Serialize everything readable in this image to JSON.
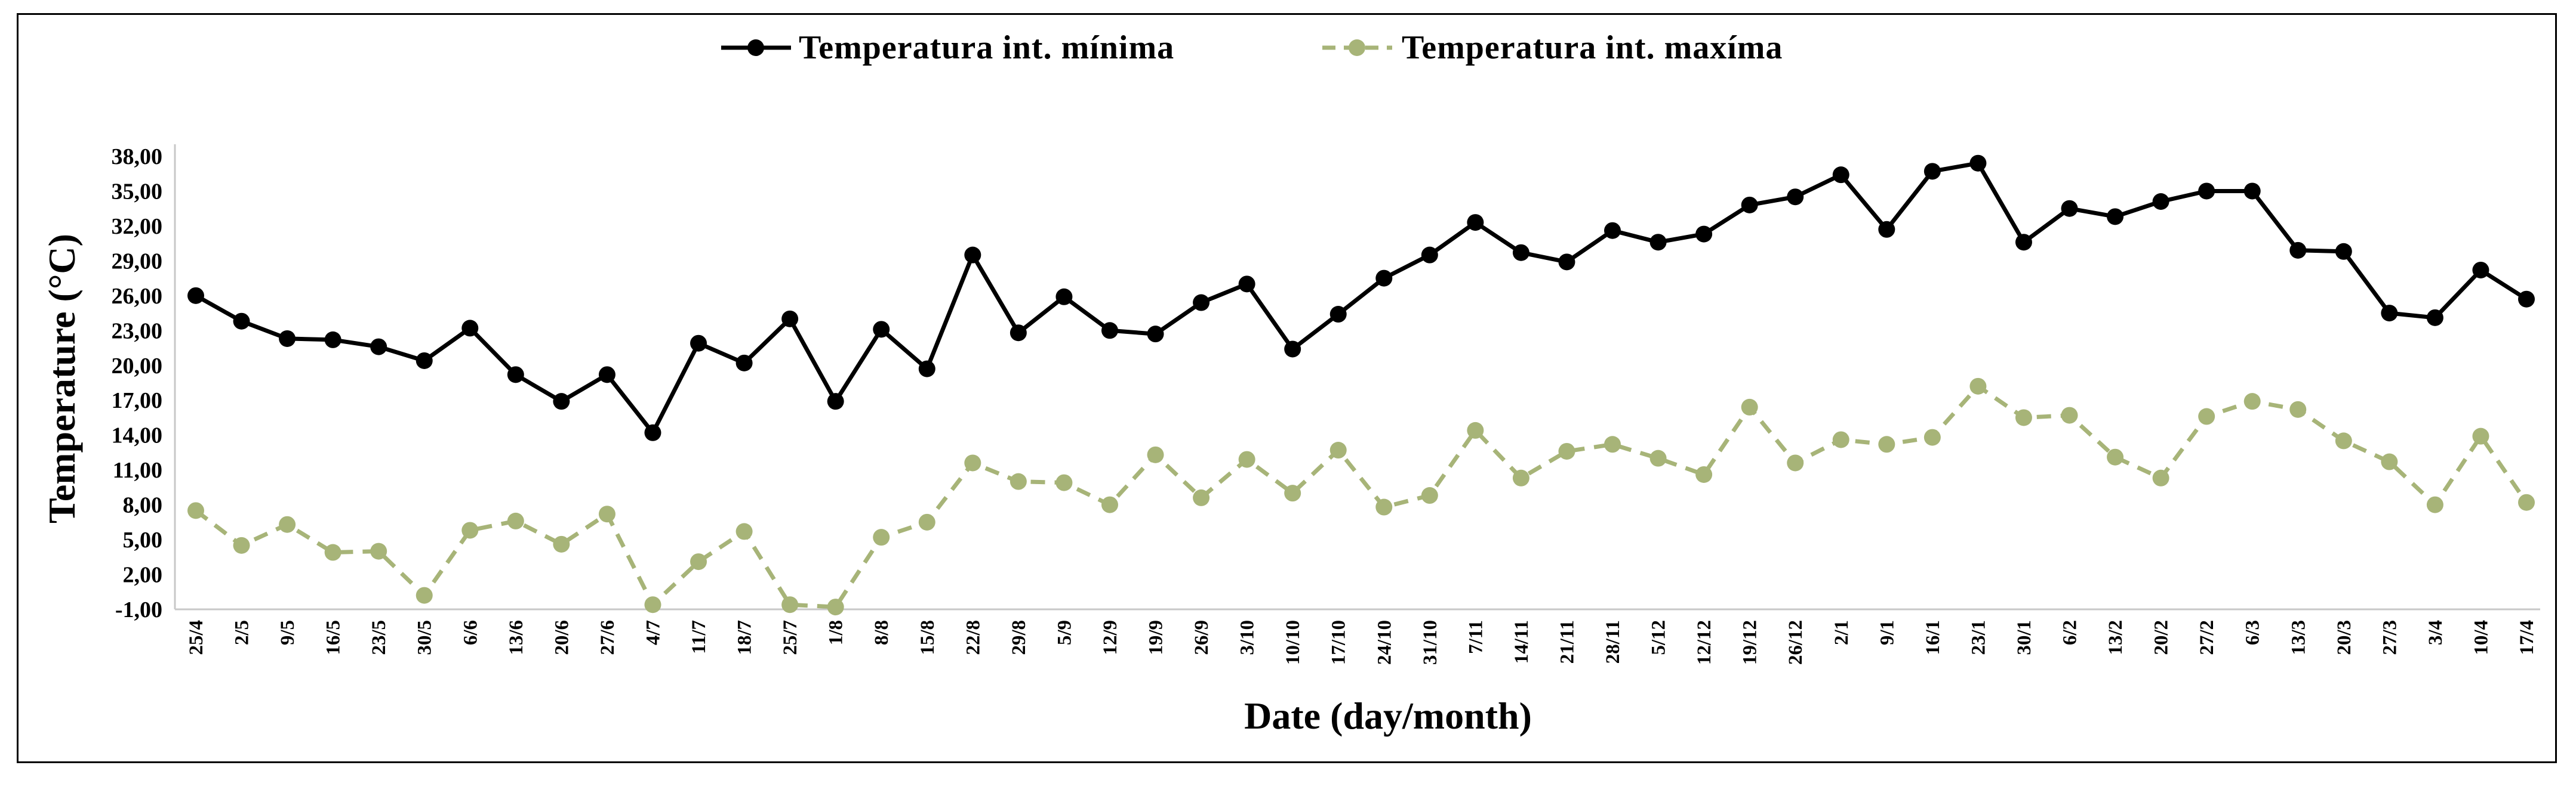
{
  "chart_data": {
    "type": "line",
    "title": "",
    "xlabel": "Date (day/month)",
    "ylabel": "Temperature (°C)",
    "ylim": [
      -1,
      38
    ],
    "yticks": [
      "-1,00",
      "2,00",
      "5,00",
      "8,00",
      "11,00",
      "14,00",
      "17,00",
      "20,00",
      "23,00",
      "26,00",
      "29,00",
      "32,00",
      "35,00",
      "38,00"
    ],
    "ytick_values": [
      -1,
      2,
      5,
      8,
      11,
      14,
      17,
      20,
      23,
      26,
      29,
      32,
      35,
      38
    ],
    "grid": false,
    "legend_position": "top-center",
    "categories": [
      "25/4",
      "2/5",
      "9/5",
      "16/5",
      "23/5",
      "30/5",
      "6/6",
      "13/6",
      "20/6",
      "27/6",
      "4/7",
      "11/7",
      "18/7",
      "25/7",
      "1/8",
      "8/8",
      "15/8",
      "22/8",
      "29/8",
      "5/9",
      "12/9",
      "19/9",
      "26/9",
      "3/10",
      "10/10",
      "17/10",
      "24/10",
      "31/10",
      "7/11",
      "14/11",
      "21/11",
      "28/11",
      "5/12",
      "12/12",
      "19/12",
      "26/12",
      "2/1",
      "9/1",
      "16/1",
      "23/1",
      "30/1",
      "6/2",
      "13/2",
      "20/2",
      "27/2",
      "6/3",
      "13/3",
      "20/3",
      "27/3",
      "3/4",
      "10/4",
      "17/4"
    ],
    "series": [
      {
        "name": "Temperatura int. mínima",
        "color": "#000000",
        "style": "solid",
        "values": [
          26.0,
          23.8,
          22.3,
          22.2,
          21.6,
          20.4,
          23.2,
          19.2,
          16.9,
          19.2,
          14.2,
          21.9,
          20.2,
          24.0,
          16.9,
          23.1,
          19.7,
          29.5,
          22.8,
          25.9,
          23.0,
          22.7,
          25.4,
          27.0,
          21.4,
          24.4,
          27.5,
          29.5,
          32.3,
          29.7,
          28.9,
          31.6,
          30.6,
          31.3,
          33.8,
          34.5,
          36.4,
          31.7,
          36.7,
          37.4,
          30.6,
          33.5,
          32.8,
          34.1,
          35.0,
          35.0,
          29.9,
          29.8,
          24.5,
          24.1,
          28.2,
          25.7
        ]
      },
      {
        "name": "Temperatura int. maxíma",
        "color": "#a7b478",
        "style": "dashed",
        "values": [
          7.5,
          4.5,
          6.3,
          3.9,
          4.0,
          0.2,
          5.8,
          6.6,
          4.6,
          7.2,
          -0.6,
          3.1,
          5.7,
          -0.6,
          -0.8,
          5.2,
          6.5,
          11.6,
          10.0,
          9.9,
          8.0,
          12.3,
          8.6,
          11.9,
          9.0,
          12.7,
          7.8,
          8.8,
          14.4,
          10.3,
          12.6,
          13.2,
          12.0,
          10.6,
          16.4,
          11.6,
          13.6,
          13.2,
          13.8,
          18.2,
          15.5,
          15.7,
          12.1,
          10.3,
          15.6,
          16.9,
          16.2,
          13.5,
          11.7,
          8.0,
          13.9,
          8.2
        ]
      }
    ]
  }
}
